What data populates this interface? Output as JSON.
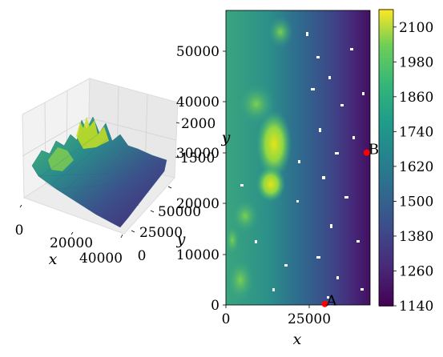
{
  "chart_data": [
    {
      "type": "surface3d",
      "title": "",
      "xlabel": "x",
      "ylabel": "y",
      "zlabel": "",
      "x_ticks": [
        "0",
        "20000",
        "40000"
      ],
      "y_ticks": [
        "0",
        "25000",
        "50000"
      ],
      "z_ticks": [
        "1500",
        "2000"
      ],
      "xlim": [
        0,
        45000
      ],
      "ylim": [
        0,
        58000
      ],
      "zlim": [
        1140,
        2150
      ],
      "colormap": "viridis"
    },
    {
      "type": "contour",
      "title": "",
      "xlabel": "x",
      "ylabel": "y",
      "x_ticks": [
        "0",
        "25000"
      ],
      "y_ticks": [
        "0",
        "10000",
        "20000",
        "30000",
        "40000",
        "50000"
      ],
      "xlim": [
        0,
        43000
      ],
      "ylim": [
        0,
        58000
      ],
      "colormap": "viridis",
      "points": [
        {
          "label": "A",
          "x": 29500,
          "y": 200
        },
        {
          "label": "B",
          "x": 42000,
          "y": 30000
        }
      ],
      "colorbar": {
        "min": 1140,
        "max": 2160,
        "tick_values": [
          1140,
          1260,
          1380,
          1500,
          1620,
          1740,
          1860,
          1980,
          2100
        ],
        "ticks": [
          "1140",
          "1260",
          "1380",
          "1500",
          "1620",
          "1740",
          "1860",
          "1980",
          "2100"
        ]
      }
    }
  ]
}
